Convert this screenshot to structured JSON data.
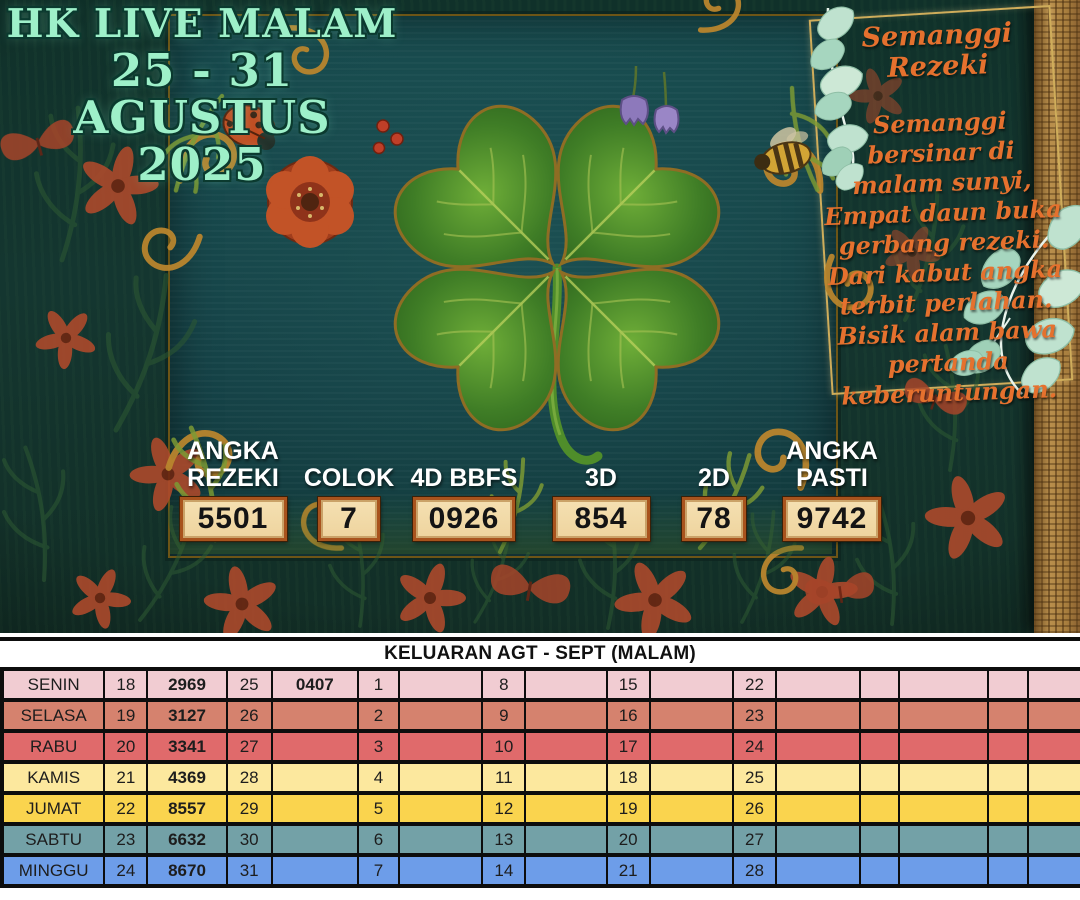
{
  "hero": {
    "title_line1": "HK LIVE MALAM",
    "title_line2": "25 - 31 AGUSTUS 2025",
    "poem": {
      "title": "Semanggi Rezeki",
      "lines": [
        "Semanggi bersinar di",
        "malam sunyi,",
        "Empat daun buka",
        "gerbang rezeki.",
        "Dari kabut angka",
        "terbit perlahan.",
        "Bisik alam bawa",
        "pertanda",
        "keberuntungan."
      ]
    },
    "predictions": [
      {
        "label": "ANGKA REZEKI",
        "value": "5501"
      },
      {
        "label": "COLOK",
        "value": "7"
      },
      {
        "label": "4D BBFS",
        "value": "0926"
      },
      {
        "label": "3D",
        "value": "854"
      },
      {
        "label": "2D",
        "value": "78"
      },
      {
        "label": "ANGKA PASTI",
        "value": "9742"
      }
    ]
  },
  "table": {
    "title": "KELUARAN AGT - SEPT (MALAM)",
    "rows": [
      {
        "day": "SENIN",
        "color": "#f1ccd2",
        "cells": [
          "18",
          "2969",
          "25",
          "0407",
          "1",
          "",
          "8",
          "",
          "15",
          "",
          "22",
          "",
          "",
          "",
          "",
          ""
        ]
      },
      {
        "day": "SELASA",
        "color": "#d5826e",
        "cells": [
          "19",
          "3127",
          "26",
          "",
          "2",
          "",
          "9",
          "",
          "16",
          "",
          "23",
          "",
          "",
          "",
          "",
          ""
        ]
      },
      {
        "day": "RABU",
        "color": "#e06a6b",
        "cells": [
          "20",
          "3341",
          "27",
          "",
          "3",
          "",
          "10",
          "",
          "17",
          "",
          "24",
          "",
          "",
          "",
          "",
          ""
        ]
      },
      {
        "day": "KAMIS",
        "color": "#fce89e",
        "cells": [
          "21",
          "4369",
          "28",
          "",
          "4",
          "",
          "11",
          "",
          "18",
          "",
          "25",
          "",
          "",
          "",
          "",
          ""
        ]
      },
      {
        "day": "JUMAT",
        "color": "#fad44e",
        "cells": [
          "22",
          "8557",
          "29",
          "",
          "5",
          "",
          "12",
          "",
          "19",
          "",
          "26",
          "",
          "",
          "",
          "",
          ""
        ]
      },
      {
        "day": "SABTU",
        "color": "#73a1a7",
        "cells": [
          "23",
          "6632",
          "30",
          "",
          "6",
          "",
          "13",
          "",
          "20",
          "",
          "27",
          "",
          "",
          "",
          "",
          ""
        ]
      },
      {
        "day": "MINGGU",
        "color": "#6d9de9",
        "cells": [
          "24",
          "8670",
          "31",
          "",
          "7",
          "",
          "14",
          "",
          "21",
          "",
          "28",
          "",
          "",
          "",
          "",
          ""
        ]
      }
    ]
  },
  "decor": {
    "clover": "four-leaf-clover",
    "ladybug": "ladybug",
    "poppy": "red-poppy-flower",
    "bee": "bee",
    "bluebells": "purple-bluebell-flowers",
    "berries": "red-berries",
    "eucalyptus": "eucalyptus-branches",
    "frame": "gold-frame",
    "bark": "wood-bark-texture"
  },
  "colors": {
    "title_text": "#9ef0c9",
    "poem_text": "#e5712e",
    "box_bg": "#f2daa8",
    "box_border": "#a8531d",
    "panel_teal": "#16474b",
    "background_green": "#132f28",
    "table_border": "#0d0d0d"
  }
}
